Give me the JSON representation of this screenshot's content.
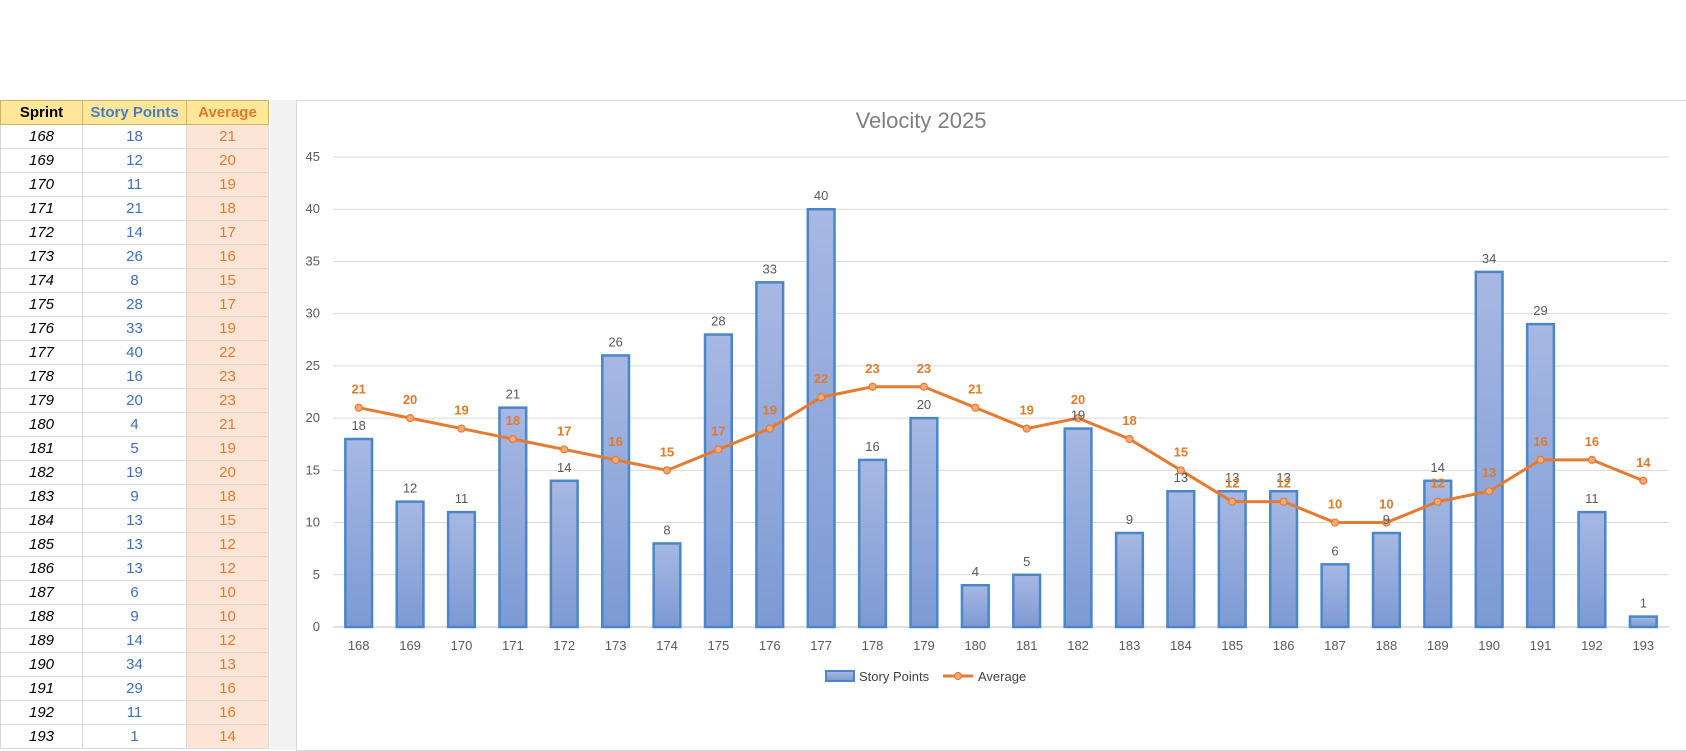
{
  "table": {
    "headers": {
      "sprint": "Sprint",
      "story_points": "Story Points",
      "average": "Average"
    },
    "rows": [
      [
        "168",
        "18",
        "21"
      ],
      [
        "169",
        "12",
        "20"
      ],
      [
        "170",
        "11",
        "19"
      ],
      [
        "171",
        "21",
        "18"
      ],
      [
        "172",
        "14",
        "17"
      ],
      [
        "173",
        "26",
        "16"
      ],
      [
        "174",
        "8",
        "15"
      ],
      [
        "175",
        "28",
        "17"
      ],
      [
        "176",
        "33",
        "19"
      ],
      [
        "177",
        "40",
        "22"
      ],
      [
        "178",
        "16",
        "23"
      ],
      [
        "179",
        "20",
        "23"
      ],
      [
        "180",
        "4",
        "21"
      ],
      [
        "181",
        "5",
        "19"
      ],
      [
        "182",
        "19",
        "20"
      ],
      [
        "183",
        "9",
        "18"
      ],
      [
        "184",
        "13",
        "15"
      ],
      [
        "185",
        "13",
        "12"
      ],
      [
        "186",
        "13",
        "12"
      ],
      [
        "187",
        "6",
        "10"
      ],
      [
        "188",
        "9",
        "10"
      ],
      [
        "189",
        "14",
        "12"
      ],
      [
        "190",
        "34",
        "13"
      ],
      [
        "191",
        "29",
        "16"
      ],
      [
        "192",
        "11",
        "16"
      ],
      [
        "193",
        "1",
        "14"
      ]
    ]
  },
  "colors": {
    "bar_fill": "#8ea7db",
    "bar_stroke": "#4a86c8",
    "line": "#e57b30",
    "header_bg": "#ffe699",
    "avg_cell_bg": "#fce4d6"
  },
  "chart_data": {
    "type": "bar",
    "title": "Velocity 2025",
    "categories": [
      "168",
      "169",
      "170",
      "171",
      "172",
      "173",
      "174",
      "175",
      "176",
      "177",
      "178",
      "179",
      "180",
      "181",
      "182",
      "183",
      "184",
      "185",
      "186",
      "187",
      "188",
      "189",
      "190",
      "191",
      "192",
      "193"
    ],
    "series": [
      {
        "name": "Story Points",
        "kind": "bar",
        "values": [
          18,
          12,
          11,
          21,
          14,
          26,
          8,
          28,
          33,
          40,
          16,
          20,
          4,
          5,
          19,
          9,
          13,
          13,
          13,
          6,
          9,
          14,
          34,
          29,
          11,
          1
        ]
      },
      {
        "name": "Average",
        "kind": "line",
        "values": [
          21,
          20,
          19,
          18,
          17,
          16,
          15,
          17,
          19,
          22,
          23,
          23,
          21,
          19,
          20,
          18,
          15,
          12,
          12,
          10,
          10,
          12,
          13,
          16,
          16,
          14
        ]
      }
    ],
    "ylim": [
      0,
      45
    ],
    "yticks": [
      0,
      5,
      10,
      15,
      20,
      25,
      30,
      35,
      40,
      45
    ],
    "grid": true,
    "legend": "bottom",
    "xlabel": "",
    "ylabel": ""
  }
}
